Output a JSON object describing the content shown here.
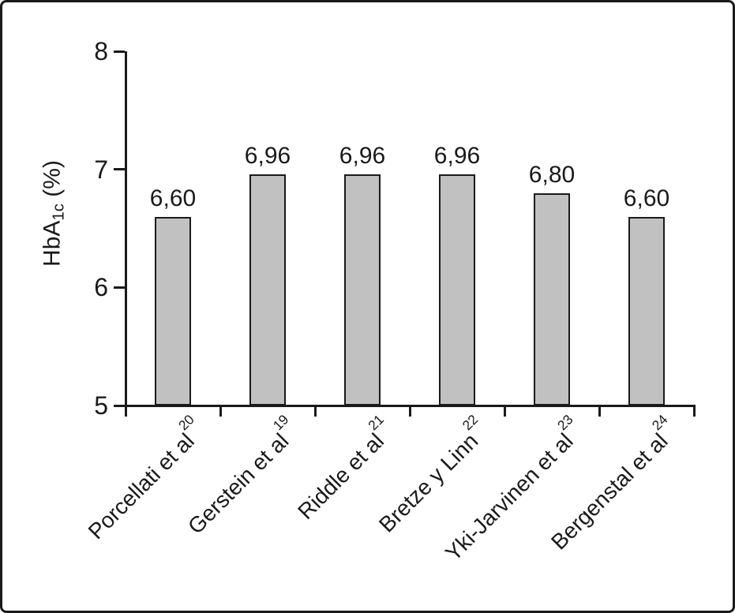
{
  "figure": {
    "background": "#ffffff",
    "frame_color": "#1a1a1a"
  },
  "axis_title": {
    "main": "HbA",
    "sub": "1c",
    "suffix": " (%)"
  },
  "chart_data": {
    "type": "bar",
    "title": "",
    "xlabel": "",
    "ylabel": "HbA1c (%)",
    "categories": [
      {
        "label": "Porcellati et al",
        "sup": "20"
      },
      {
        "label": "Gerstein et al",
        "sup": "19"
      },
      {
        "label": "Riddle et al",
        "sup": "21"
      },
      {
        "label": "Bretze y Linn",
        "sup": "22"
      },
      {
        "label": "Yki-Jarvinen et al",
        "sup": "23"
      },
      {
        "label": "Bergenstal et al",
        "sup": "24"
      }
    ],
    "values": [
      6.6,
      6.96,
      6.96,
      6.96,
      6.8,
      6.6
    ],
    "value_labels": [
      "6,60",
      "6,96",
      "6,96",
      "6,96",
      "6,80",
      "6,60"
    ],
    "y_ticks": [
      5,
      6,
      7,
      8
    ],
    "ylim": [
      5,
      8
    ],
    "grid": false,
    "legend": false,
    "bar_fill": "#c1c1c1",
    "bar_border": "#1a1a1a",
    "axis_color": "#1a1a1a"
  }
}
